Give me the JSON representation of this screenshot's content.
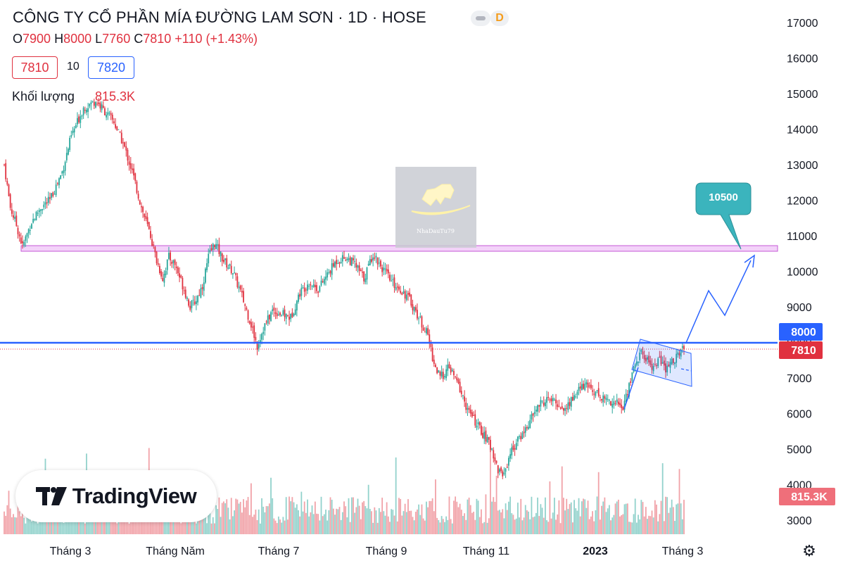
{
  "header": {
    "title": "CÔNG TY CỔ PHẦN MÍA ĐƯỜNG LAM SƠN · 1D · HOSE",
    "badge": "D",
    "o_label": "O",
    "o_value": "7900",
    "h_label": "H",
    "h_value": "8000",
    "l_label": "L",
    "l_value": "7760",
    "c_label": "C",
    "c_value": "7810",
    "change": "+110 (+1.43%)"
  },
  "trade": {
    "sell_price": "7810",
    "quantity": "10",
    "buy_price": "7820"
  },
  "volume_label": "Khối lượng",
  "volume_value": "815.3K",
  "watermark_text": "NhaDauTu79",
  "branding": "TradingView",
  "colors": {
    "up": "#26a69a",
    "down": "#e0313f",
    "blue": "#2962ff",
    "zone": "#f3d2f9"
  },
  "icons": [
    "chart-type-icon",
    "tradingview-logo-icon",
    "settings-gear-icon",
    "bull-logo-icon"
  ],
  "chart_data": {
    "type": "candlestick",
    "title": "CÔNG TY CỔ PHẦN MÍA ĐƯỜNG LAM SƠN · 1D · HOSE",
    "interval": "1D",
    "exchange": "HOSE",
    "y_ticks": [
      17000,
      16000,
      15000,
      14000,
      13000,
      12000,
      11000,
      10000,
      9000,
      8000,
      7000,
      6000,
      5000,
      4000,
      3000
    ],
    "ylim": [
      2600,
      17500
    ],
    "x_labels": [
      "Tháng 3",
      "Tháng Năm",
      "Tháng 7",
      "Tháng 9",
      "Tháng 11",
      "2023",
      "Tháng 3"
    ],
    "last_candle": {
      "open": 7900,
      "high": 8000,
      "low": 7760,
      "close": 7810,
      "change": "+110 (+1.43%)",
      "volume": "815.3K"
    },
    "price_path": [
      [
        0,
        13000
      ],
      [
        4,
        11800
      ],
      [
        8,
        11300
      ],
      [
        12,
        10700
      ],
      [
        18,
        11400
      ],
      [
        24,
        11800
      ],
      [
        30,
        12000
      ],
      [
        38,
        12800
      ],
      [
        44,
        13800
      ],
      [
        52,
        14600
      ],
      [
        60,
        14800
      ],
      [
        66,
        14500
      ],
      [
        72,
        14200
      ],
      [
        78,
        13600
      ],
      [
        84,
        12800
      ],
      [
        90,
        11800
      ],
      [
        96,
        11000
      ],
      [
        100,
        10300
      ],
      [
        104,
        9800
      ],
      [
        108,
        10400
      ],
      [
        112,
        10200
      ],
      [
        118,
        9500
      ],
      [
        122,
        9000
      ],
      [
        126,
        9200
      ],
      [
        130,
        9600
      ],
      [
        134,
        10400
      ],
      [
        138,
        10800
      ],
      [
        144,
        10300
      ],
      [
        150,
        10000
      ],
      [
        156,
        9300
      ],
      [
        162,
        8500
      ],
      [
        166,
        7900
      ],
      [
        170,
        8400
      ],
      [
        176,
        8900
      ],
      [
        182,
        8800
      ],
      [
        188,
        8700
      ],
      [
        194,
        9400
      ],
      [
        200,
        9700
      ],
      [
        206,
        9500
      ],
      [
        212,
        9900
      ],
      [
        218,
        10300
      ],
      [
        224,
        10400
      ],
      [
        230,
        10200
      ],
      [
        236,
        9800
      ],
      [
        242,
        10500
      ],
      [
        248,
        10100
      ],
      [
        254,
        9700
      ],
      [
        260,
        9500
      ],
      [
        266,
        9200
      ],
      [
        272,
        8700
      ],
      [
        278,
        8200
      ],
      [
        282,
        7400
      ],
      [
        286,
        7000
      ],
      [
        292,
        7300
      ],
      [
        298,
        6800
      ],
      [
        304,
        6100
      ],
      [
        310,
        5700
      ],
      [
        316,
        5300
      ],
      [
        320,
        5000
      ],
      [
        324,
        4400
      ],
      [
        328,
        4300
      ],
      [
        332,
        4900
      ],
      [
        338,
        5300
      ],
      [
        344,
        5700
      ],
      [
        350,
        6200
      ],
      [
        356,
        6400
      ],
      [
        362,
        6300
      ],
      [
        368,
        6100
      ],
      [
        374,
        6500
      ],
      [
        380,
        6800
      ],
      [
        386,
        6700
      ],
      [
        392,
        6450
      ],
      [
        398,
        6350
      ],
      [
        402,
        6300
      ],
      [
        406,
        6150
      ],
      [
        410,
        6800
      ],
      [
        414,
        7400
      ],
      [
        418,
        7700
      ],
      [
        422,
        7500
      ],
      [
        426,
        7300
      ],
      [
        430,
        7550
      ],
      [
        434,
        7200
      ],
      [
        438,
        7450
      ],
      [
        442,
        7650
      ],
      [
        446,
        7810
      ]
    ],
    "volume_ylim": [
      0,
      4000000
    ],
    "volume_last": 815300,
    "levels": [
      {
        "name": "resistance-zone",
        "low": 10600,
        "high": 10750,
        "color": "#f3d2f9"
      },
      {
        "name": "breakout-line",
        "value": 8000,
        "label": "8000",
        "color": "#2962ff"
      },
      {
        "name": "last-price",
        "value": 7810,
        "label": "7810",
        "color": "#e0313f"
      }
    ],
    "annotations": [
      {
        "type": "callout",
        "text": "10500",
        "color": "#3bb4bd"
      },
      {
        "type": "projection-path",
        "points": [
          [
            450,
            7900
          ],
          [
            465,
            9400
          ],
          [
            475,
            8800
          ],
          [
            495,
            10400
          ]
        ],
        "color": "#2962ff"
      },
      {
        "type": "channel",
        "color": "#2962ff"
      }
    ]
  }
}
